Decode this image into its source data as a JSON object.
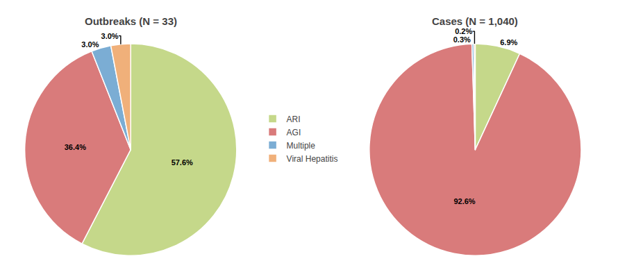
{
  "chart_data": [
    {
      "type": "pie",
      "title": "Outbreaks (N = 33)",
      "categories": [
        "ARI",
        "AGI",
        "Multiple",
        "Viral Hepatitis"
      ],
      "values": [
        57.6,
        36.4,
        3.0,
        3.0
      ],
      "value_labels": [
        "57.6%",
        "36.4%",
        "3.0%",
        "3.0%"
      ],
      "colors": [
        "#c5d88a",
        "#d97b7b",
        "#7badd4",
        "#f0b07a"
      ],
      "data_labels": true,
      "legend": "center"
    },
    {
      "type": "pie",
      "title": "Cases (N = 1,040)",
      "categories": [
        "ARI",
        "AGI",
        "Multiple",
        "Viral Hepatitis"
      ],
      "values": [
        6.9,
        92.6,
        0.3,
        0.2
      ],
      "value_labels": [
        "6.9%",
        "92.6%",
        "0.3%",
        "0.2%"
      ],
      "colors": [
        "#c5d88a",
        "#d97b7b",
        "#7badd4",
        "#f0b07a"
      ],
      "data_labels": true,
      "legend": "center"
    }
  ]
}
